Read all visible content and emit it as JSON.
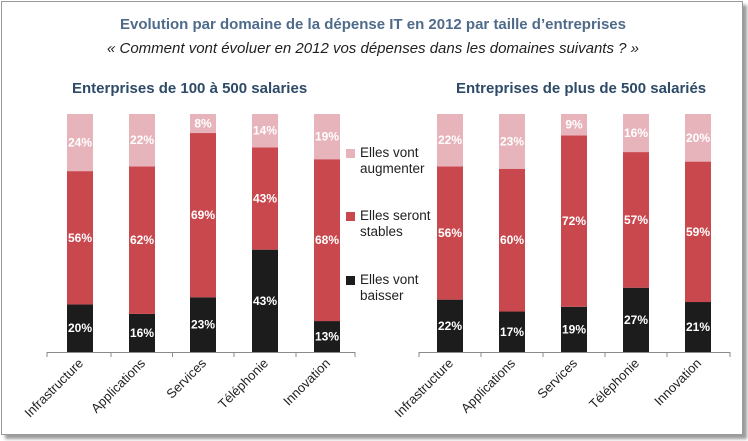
{
  "title": "Evolution par domaine de la dépense IT en 2012 par taille d’entreprises",
  "subtitle": "« Comment vont évoluer en 2012 vos dépenses dans les domaines suivants ? »",
  "colors": {
    "augmenter": "#e8b4bc",
    "stables": "#c9484e",
    "baisser": "#1c1c1c"
  },
  "legend": [
    {
      "key": "augmenter",
      "label_line1": "Elles vont",
      "label_line2": "augmenter"
    },
    {
      "key": "stables",
      "label_line1": "Elles seront",
      "label_line2": "stables"
    },
    {
      "key": "baisser",
      "label_line1": "Elles vont",
      "label_line2": "baisser"
    }
  ],
  "chart_data": [
    {
      "type": "bar",
      "stacked": true,
      "title": "Enterprises de 100 à 500 salaries",
      "categories": [
        "Infrastructure",
        "Applications",
        "Services",
        "Téléphonie",
        "Innovation"
      ],
      "series": [
        {
          "name": "Elles vont baisser",
          "key": "baisser",
          "values": [
            20,
            16,
            23,
            43,
            13
          ],
          "labels": [
            "20%",
            "16%",
            "23%",
            "43%",
            "13%"
          ]
        },
        {
          "name": "Elles seront stables",
          "key": "stables",
          "values": [
            56,
            62,
            69,
            43,
            68
          ],
          "labels": [
            "56%",
            "62%",
            "69%",
            "43%",
            "68%"
          ]
        },
        {
          "name": "Elles vont augmenter",
          "key": "augmenter",
          "values": [
            24,
            22,
            8,
            14,
            19
          ],
          "labels": [
            "24%",
            "22%",
            "8%",
            "14%",
            "19%"
          ]
        }
      ]
    },
    {
      "type": "bar",
      "stacked": true,
      "title": "Entreprises de plus de 500 salariés",
      "categories": [
        "Infrastructure",
        "Applications",
        "Services",
        "Téléphonie",
        "Innovation"
      ],
      "series": [
        {
          "name": "Elles vont baisser",
          "key": "baisser",
          "values": [
            22,
            17,
            19,
            27,
            21
          ],
          "labels": [
            "22%",
            "17%",
            "19%",
            "27%",
            "21%"
          ]
        },
        {
          "name": "Elles seront stables",
          "key": "stables",
          "values": [
            56,
            60,
            72,
            57,
            59
          ],
          "labels": [
            "56%",
            "60%",
            "72%",
            "57%",
            "59%"
          ]
        },
        {
          "name": "Elles vont augmenter",
          "key": "augmenter",
          "values": [
            22,
            23,
            9,
            16,
            20
          ],
          "labels": [
            "22%",
            "23%",
            "9%",
            "16%",
            "20%"
          ]
        }
      ]
    }
  ]
}
